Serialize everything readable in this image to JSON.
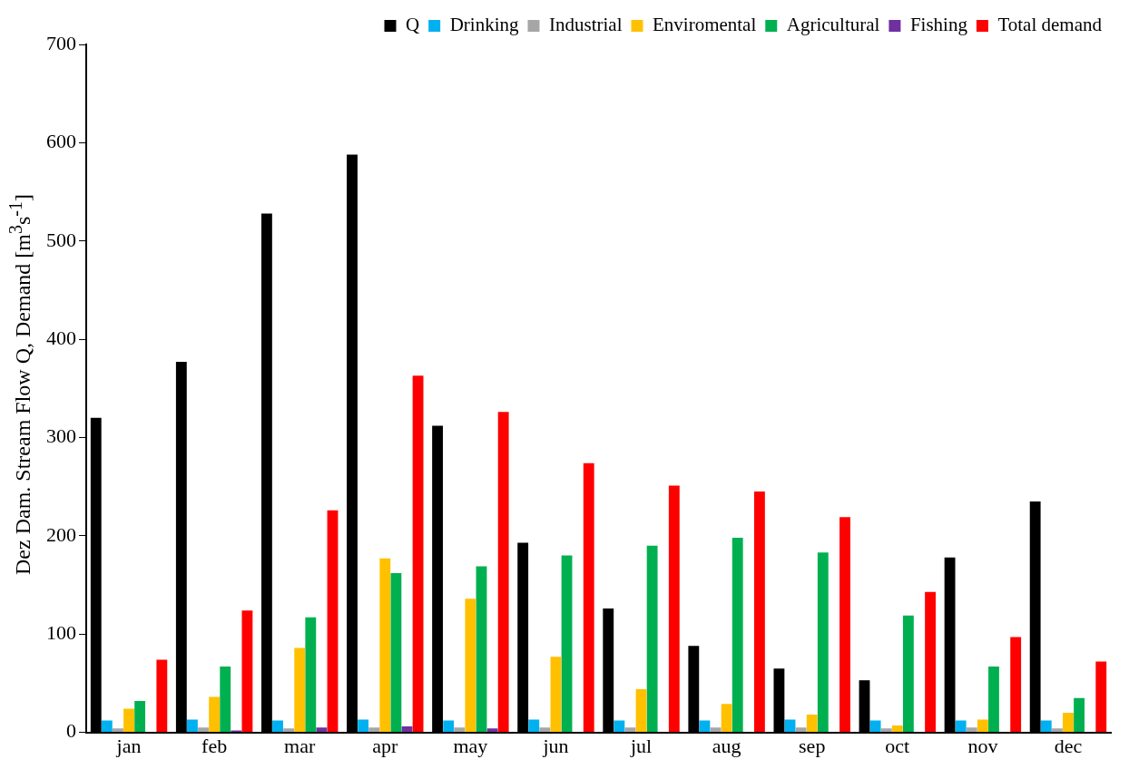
{
  "chart_data": {
    "type": "bar",
    "ylabel": "Dez Dam. Stream Flow Q, Demand [m$^{3}$s$^{-1}$]",
    "categories": [
      "jan",
      "feb",
      "mar",
      "apr",
      "may",
      "jun",
      "jul",
      "aug",
      "sep",
      "oct",
      "nov",
      "dec"
    ],
    "series": [
      {
        "name": "Q",
        "color": "#000000",
        "values": [
          320,
          377,
          528,
          588,
          312,
          193,
          126,
          88,
          65,
          53,
          178,
          235
        ]
      },
      {
        "name": "Drinking",
        "color": "#00b0f0",
        "values": [
          12,
          13,
          12,
          13,
          12,
          13,
          12,
          12,
          13,
          12,
          12,
          12
        ]
      },
      {
        "name": "Industrial",
        "color": "#a6a6a6",
        "values": [
          4,
          5,
          4,
          5,
          5,
          5,
          5,
          5,
          5,
          4,
          5,
          4
        ]
      },
      {
        "name": "Enviromental",
        "color": "#ffc000",
        "values": [
          24,
          36,
          86,
          177,
          136,
          77,
          44,
          29,
          18,
          7,
          13,
          20
        ]
      },
      {
        "name": "Agricultural",
        "color": "#00b050",
        "values": [
          32,
          67,
          117,
          162,
          169,
          180,
          190,
          198,
          183,
          119,
          67,
          35
        ]
      },
      {
        "name": "Fishing",
        "color": "#7030a0",
        "values": [
          0,
          2,
          5,
          6,
          4,
          0,
          0,
          0,
          0,
          0,
          0,
          0
        ]
      },
      {
        "name": "Total demand",
        "color": "#ff0000",
        "values": [
          74,
          124,
          226,
          363,
          326,
          274,
          251,
          245,
          219,
          143,
          97,
          72
        ]
      }
    ],
    "ylim": [
      0,
      700
    ],
    "yticks": [
      0,
      100,
      200,
      300,
      400,
      500,
      600,
      700
    ],
    "grid": false,
    "legend": "top"
  }
}
